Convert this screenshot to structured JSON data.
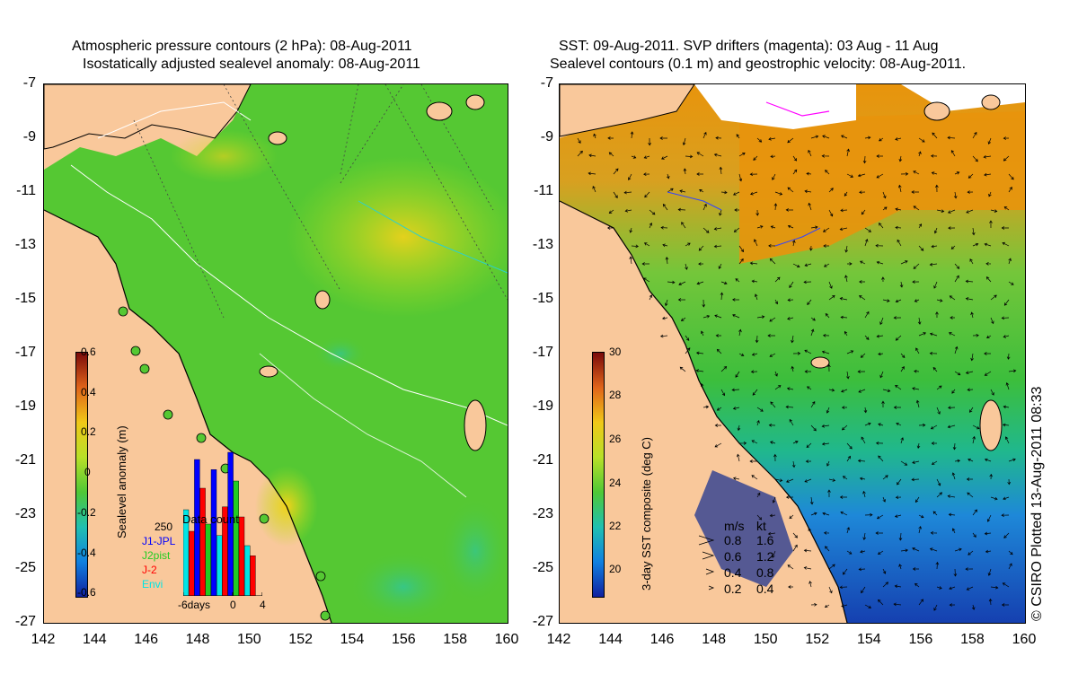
{
  "left_panel": {
    "title_line1": "Atmospheric pressure contours (2 hPa): 08-Aug-2011",
    "title_line2": "Isostatically adjusted sealevel anomaly: 08-Aug-2011",
    "colorbar_label": "Sealevel anomaly (m)",
    "colorbar_ticks": [
      "0.6",
      "0.4",
      "0.2",
      "0",
      "-0.2",
      "-0.4",
      "-0.6"
    ],
    "data_count": {
      "title": "Data count",
      "max_label": "250",
      "xlabel_left": "-6days",
      "xlabel_mid": "0",
      "xlabel_right": "4",
      "legend": [
        {
          "name": "J1-JPL",
          "color": "#0000ff"
        },
        {
          "name": "J2pist",
          "color": "#22cc22"
        },
        {
          "name": "J-2",
          "color": "#ff0000"
        },
        {
          "name": "Envi",
          "color": "#00e5e5"
        }
      ]
    }
  },
  "right_panel": {
    "title_line1": "SST: 09-Aug-2011. SVP drifters (magenta): 03 Aug - 11 Aug",
    "title_line2": "Sealevel contours (0.1 m) and geostrophic velocity: 08-Aug-2011.",
    "colorbar_label": "3-day SST composite (deg C)",
    "colorbar_ticks": [
      "30",
      "28",
      "26",
      "24",
      "22",
      "20"
    ],
    "velocity_legend": {
      "header_ms": "m/s",
      "header_kt": "kt",
      "rows": [
        {
          "ms": "0.8",
          "kt": "1.6"
        },
        {
          "ms": "0.6",
          "kt": "1.2"
        },
        {
          "ms": "0.4",
          "kt": "0.8"
        },
        {
          "ms": "0.2",
          "kt": "0.4"
        }
      ]
    }
  },
  "axes": {
    "x_ticks": [
      "142",
      "144",
      "146",
      "148",
      "150",
      "152",
      "154",
      "156",
      "158",
      "160"
    ],
    "y_ticks": [
      "-7",
      "-9",
      "-11",
      "-13",
      "-15",
      "-17",
      "-19",
      "-21",
      "-23",
      "-25",
      "-27"
    ]
  },
  "credit": "© CSIRO Plotted 13-Aug-2011 08:33",
  "colors": {
    "land": "#f9c89b",
    "sla_green": "#55c833",
    "sst_orange": "#e8940c",
    "sst_blue": "#1e6ecf"
  }
}
